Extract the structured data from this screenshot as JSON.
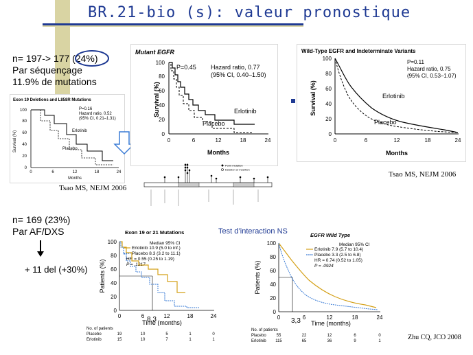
{
  "title": "BR.21-bio (s): valeur pronostique",
  "left_top_text": [
    "n= 197-> 177 (24%)",
    "Par séquençage",
    "11.9% de mutations"
  ],
  "left_bottom_text": [
    "n= 169 (23%)",
    "Par AF/DXS"
  ],
  "plus_del_text": "+ 11 del  (+30%)",
  "interaction_text": "Test d’interaction NS",
  "tsao_ref_left": "Tsao MS, NEJM 2006",
  "tsao_ref_right": "Tsao MS, NEJM 2006",
  "zhu_ref": "Zhu CQ, JCO 2008",
  "colors": {
    "title": "#1f3a93",
    "accent": "#1f3a93",
    "deco": "#d9d4a3",
    "erlotinib": "#d4a017",
    "placebo": "#3a7bd5"
  },
  "panel_exon19_small": {
    "title": "Exon 19 Deletions and L858R Mutations",
    "stats": [
      "P=0.16",
      "Hazard ratio, 0.52",
      "(95% CI, 0.21–1.31)"
    ],
    "ylabel": "Survival (%)",
    "xlabel": "Months",
    "yticks": [
      "0",
      "20",
      "40",
      "60",
      "80",
      "100"
    ],
    "xticks": [
      "0",
      "6",
      "12",
      "18",
      "24"
    ],
    "erlotinib_label": "Erlotinib",
    "placebo_label": "Placebo"
  },
  "panel_mutant": {
    "title": "Mutant EGFR",
    "p": "P=0.45",
    "hr": "Hazard ratio, 0.77",
    "ci": "(95% CI, 0.40–1.50)",
    "ylabel": "Survival (%)",
    "xlabel": "Months",
    "yticks": [
      "0",
      "20",
      "40",
      "60",
      "80",
      "100"
    ],
    "xticks": [
      "0",
      "6",
      "12",
      "18",
      "24"
    ],
    "erlotinib_label": "Erlotinib",
    "placebo_label": "Placebo"
  },
  "panel_wildtype": {
    "title": "Wild-Type EGFR and Indeterminate Variants",
    "p": "P=0.11",
    "hr": "Hazard ratio, 0.75",
    "ci": "(95% CI, 0.53–1.07)",
    "ylabel": "Survival (%)",
    "xlabel": "Months",
    "yticks": [
      "0",
      "20",
      "40",
      "60",
      "80",
      "100"
    ],
    "xticks": [
      "0",
      "6",
      "12",
      "18",
      "24"
    ],
    "erlotinib_label": "Erlotinib",
    "placebo_label": "Placebo"
  },
  "panel_zhu_mut": {
    "title": "Exon 19 or 21 Mutations",
    "header": "Median    95% CI",
    "row1": "Erlotinib   10.9  (5.0 to inf.)",
    "row2": "Placebo      8.3   (3.2 to 11.1)",
    "hr": "HR = 0.55 (0.25 to 1.19)",
    "p": "P = .1217",
    "ylabel": "Patients (%)",
    "xlabel": "Time (months)",
    "yticks": [
      "0",
      "20",
      "40",
      "60",
      "80",
      "100"
    ],
    "xticks": [
      "0",
      "6",
      "12",
      "18",
      "24"
    ],
    "median_label": "8,3",
    "nrisk_title": "No. of patients",
    "nrisk_rows": [
      [
        "Placebo",
        "19",
        "10",
        "5",
        "1",
        "0"
      ],
      [
        "Erlotinib",
        "15",
        "10",
        "7",
        "1",
        "1"
      ]
    ]
  },
  "panel_zhu_wt": {
    "title": "EGFR Wild Type",
    "header": "Median    95% CI",
    "row1": "Erlotinib   7.9   (5.7 to 10.4)",
    "row2": "Placebo     3.3   (2.5 to 6.8)",
    "hr": "HR = 0.74 (0.52 to 1.05)",
    "p": "P = .0924",
    "ylabel": "Patients (%)",
    "xlabel": "Time (months)",
    "yticks": [
      "0",
      "20",
      "40",
      "60",
      "80",
      "100"
    ],
    "xticks": [
      "0",
      "6",
      "12",
      "18",
      "24"
    ],
    "median_label": "3,3",
    "nrisk_title": "No. of patients",
    "nrisk_rows": [
      [
        "Placebo",
        "55",
        "22",
        "12",
        "6",
        "0"
      ],
      [
        "Erlotinib",
        "115",
        "65",
        "36",
        "9",
        "1"
      ]
    ]
  },
  "lollipop": {
    "legend": [
      "Point mutation",
      "Deletion or insertion"
    ]
  }
}
